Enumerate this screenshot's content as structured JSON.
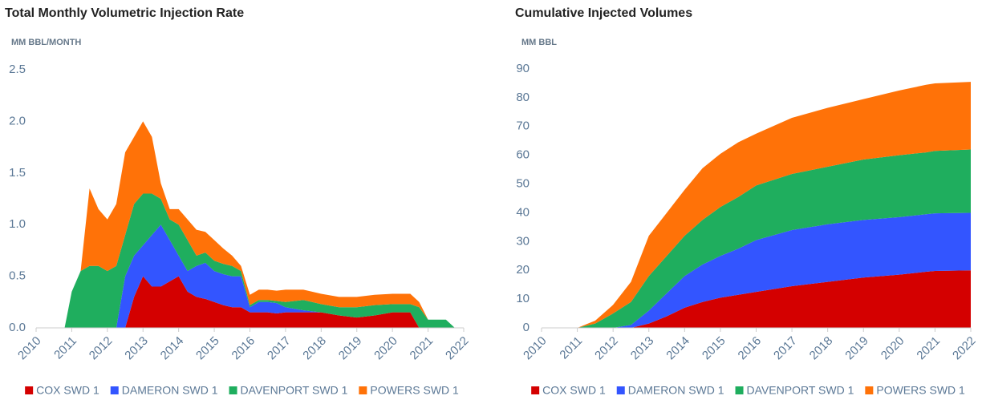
{
  "chart_data": [
    {
      "type": "area",
      "stacked": true,
      "title": "Total Monthly Volumetric Injection Rate",
      "y_label": "MM BBL/MONTH",
      "x": [
        2010.8,
        2011.0,
        2011.25,
        2011.5,
        2011.75,
        2012.0,
        2012.25,
        2012.5,
        2012.75,
        2013.0,
        2013.25,
        2013.5,
        2013.75,
        2014.0,
        2014.25,
        2014.5,
        2014.75,
        2015.0,
        2015.25,
        2015.5,
        2015.75,
        2016.0,
        2016.25,
        2016.5,
        2016.75,
        2017.0,
        2017.5,
        2018.0,
        2018.5,
        2019.0,
        2019.5,
        2020.0,
        2020.5,
        2020.75,
        2021.0,
        2021.5,
        2021.75
      ],
      "xlim": [
        2010,
        2022
      ],
      "xticks": [
        2010,
        2011,
        2012,
        2013,
        2014,
        2015,
        2016,
        2017,
        2018,
        2019,
        2020,
        2021,
        2022
      ],
      "ylim": [
        0,
        2.5
      ],
      "yticks": [
        {
          "value": 0,
          "label": "0.0"
        },
        0.5,
        {
          "value": 1,
          "label": "1.0"
        },
        1.5,
        {
          "value": 2,
          "label": "2.0"
        },
        2.5
      ],
      "series": [
        {
          "name": "COX SWD 1",
          "color": "#d40000",
          "values": [
            0,
            0,
            0,
            0,
            0,
            0,
            0,
            0,
            0.3,
            0.5,
            0.4,
            0.4,
            0.45,
            0.5,
            0.35,
            0.3,
            0.28,
            0.25,
            0.22,
            0.2,
            0.2,
            0.15,
            0.15,
            0.15,
            0.14,
            0.15,
            0.15,
            0.15,
            0.12,
            0.1,
            0.12,
            0.15,
            0.15,
            0,
            0,
            0,
            0
          ]
        },
        {
          "name": "DAMERON SWD 1",
          "color": "#3355ff",
          "values": [
            0,
            0,
            0,
            0,
            0,
            0,
            0,
            0.5,
            0.4,
            0.3,
            0.5,
            0.6,
            0.4,
            0.2,
            0.2,
            0.3,
            0.35,
            0.3,
            0.3,
            0.3,
            0.3,
            0.05,
            0.1,
            0.1,
            0.1,
            0.05,
            0.02,
            0,
            0,
            0,
            0,
            0,
            0,
            0,
            0,
            0,
            0
          ]
        },
        {
          "name": "DAVENPORT SWD 1",
          "color": "#1fae5e",
          "values": [
            0,
            0.35,
            0.55,
            0.6,
            0.6,
            0.55,
            0.6,
            0.4,
            0.5,
            0.5,
            0.4,
            0.25,
            0.2,
            0.3,
            0.3,
            0.1,
            0.1,
            0.1,
            0.1,
            0.1,
            0.05,
            0.02,
            0.02,
            0.02,
            0.02,
            0.05,
            0.1,
            0.08,
            0.08,
            0.1,
            0.1,
            0.08,
            0.08,
            0.2,
            0.08,
            0.08,
            0
          ]
        },
        {
          "name": "POWERS SWD 1",
          "color": "#ff7208",
          "values": [
            0,
            0,
            0,
            0.75,
            0.55,
            0.5,
            0.6,
            0.8,
            0.65,
            0.7,
            0.55,
            0.15,
            0.1,
            0.15,
            0.2,
            0.25,
            0.2,
            0.2,
            0.15,
            0.1,
            0.05,
            0.1,
            0.1,
            0.1,
            0.1,
            0.12,
            0.1,
            0.1,
            0.1,
            0.1,
            0.1,
            0.1,
            0.1,
            0.05,
            0,
            0,
            0
          ]
        }
      ]
    },
    {
      "type": "area",
      "stacked": true,
      "title": "Cumulative Injected Volumes",
      "y_label": "MM BBL",
      "x": [
        2011,
        2011.5,
        2012,
        2012.5,
        2013,
        2013.5,
        2014,
        2014.5,
        2015,
        2015.5,
        2016,
        2017,
        2018,
        2019,
        2020,
        2020.75,
        2021,
        2022
      ],
      "xlim": [
        2010,
        2022
      ],
      "xticks": [
        2010,
        2011,
        2012,
        2013,
        2014,
        2015,
        2016,
        2017,
        2018,
        2019,
        2020,
        2021,
        2022
      ],
      "ylim": [
        0,
        90
      ],
      "yticks": [
        0,
        10,
        20,
        30,
        40,
        50,
        60,
        70,
        80,
        90
      ],
      "series": [
        {
          "name": "COX SWD 1",
          "color": "#d40000",
          "values": [
            0,
            0,
            0,
            0,
            1.5,
            4,
            7,
            9,
            10.5,
            11.5,
            12.5,
            14.5,
            16,
            17.5,
            18.5,
            19.5,
            19.8,
            20
          ]
        },
        {
          "name": "DAMERON SWD 1",
          "color": "#3355ff",
          "values": [
            0,
            0,
            0,
            1,
            4.5,
            8,
            11,
            13,
            14.5,
            16,
            18,
            19.5,
            20,
            20,
            20,
            20,
            20,
            20
          ]
        },
        {
          "name": "DAVENPORT SWD 1",
          "color": "#1fae5e",
          "values": [
            0,
            1.5,
            5,
            8,
            12,
            13,
            14,
            15.5,
            17,
            18,
            19,
            19.5,
            20,
            21,
            21.5,
            21.5,
            21.7,
            22
          ]
        },
        {
          "name": "POWERS SWD 1",
          "color": "#ff7208",
          "values": [
            0,
            1,
            3,
            7,
            14,
            15,
            16,
            18,
            18.5,
            19,
            18,
            19.5,
            20.5,
            21,
            22.5,
            23.5,
            23.5,
            23.5
          ]
        }
      ]
    }
  ]
}
